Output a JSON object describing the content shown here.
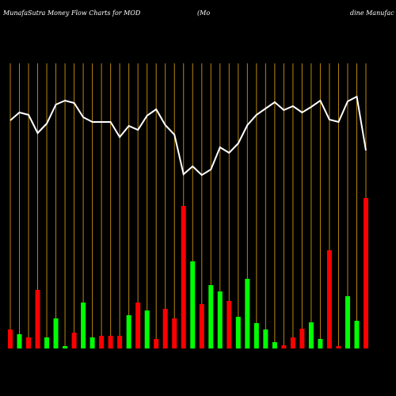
{
  "chart_data": {
    "type": "money-flow",
    "title": "MunafaSutra  Money Flow  Charts for MOD",
    "subtitle_start": "(Mo",
    "subtitle_end": "dine   Manufac",
    "categories": [
      null,
      null,
      null,
      null,
      null,
      null,
      null,
      null,
      null,
      null,
      null,
      null,
      null,
      null,
      null,
      null,
      null,
      null,
      null,
      null,
      null,
      null,
      null,
      null,
      null,
      null,
      null,
      null,
      null,
      null,
      null,
      null,
      null,
      null,
      null,
      null,
      null,
      null,
      null,
      null
    ],
    "bars": [
      24,
      18,
      14,
      74,
      14,
      38,
      3,
      20,
      58,
      14,
      16,
      16,
      16,
      42,
      58,
      48,
      12,
      50,
      38,
      180,
      110,
      56,
      80,
      72,
      60,
      40,
      88,
      32,
      24,
      8,
      4,
      14,
      25,
      33,
      12,
      124,
      3,
      66,
      35,
      190
    ],
    "bar_colors": [
      "#ff0000",
      "#00ff00",
      "#ff0000",
      "#ff0000",
      "#00ff00",
      "#00ff00",
      "#00ff00",
      "#ff0000",
      "#00ff00",
      "#00ff00",
      "#ff0000",
      "#ff0000",
      "#ff0000",
      "#00ff00",
      "#ff0000",
      "#00ff00",
      "#ff0000",
      "#ff0000",
      "#ff0000",
      "#ff0000",
      "#00ff00",
      "#ff0000",
      "#00ff00",
      "#00ff00",
      "#ff0000",
      "#00ff00",
      "#00ff00",
      "#00ff00",
      "#00ff00",
      "#00ff00",
      "#ff0000",
      "#ff0000",
      "#ff0000",
      "#00ff00",
      "#00ff00",
      "#ff0000",
      "#ff0000",
      "#00ff00",
      "#00ff00",
      "#ff0000"
    ],
    "bar_ylim": [
      0,
      360
    ],
    "line": [
      288,
      298,
      295,
      272,
      284,
      308,
      313,
      310,
      292,
      286,
      286,
      286,
      267,
      281,
      276,
      294,
      302,
      282,
      270,
      220,
      230,
      219,
      226,
      254,
      247,
      259,
      282,
      295,
      303,
      311,
      301,
      306,
      298,
      305,
      313,
      289,
      286,
      312,
      318,
      250
    ],
    "line_color": "#ffffff",
    "line_ylim": [
      0,
      360
    ],
    "grid_color": "#b8860b"
  }
}
